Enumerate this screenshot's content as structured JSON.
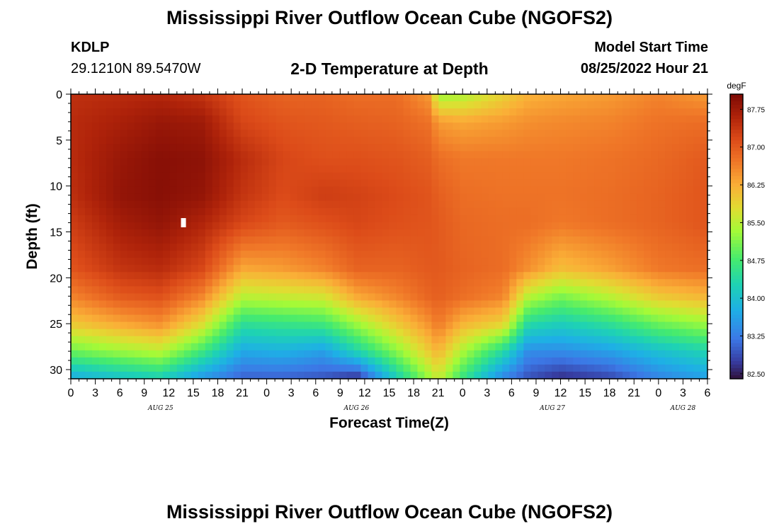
{
  "header": {
    "title": "Mississippi River Outflow Ocean Cube (NGOFS2)",
    "station": "KDLP",
    "coords": "29.1210N  89.5470W",
    "subtitle": "2-D Temperature at Depth",
    "model_start_label": "Model Start Time",
    "model_start_value": "08/25/2022 Hour 21",
    "bottom_title": "Mississippi River Outflow Ocean Cube (NGOFS2)"
  },
  "chart_data": {
    "type": "heatmap",
    "title": "2-D Temperature at Depth",
    "xlabel": "Forecast Time(Z)",
    "ylabel": "Depth (ft)",
    "x_tick_labels": [
      "0",
      "3",
      "6",
      "9",
      "12",
      "15",
      "18",
      "21",
      "0",
      "3",
      "6",
      "9",
      "12",
      "15",
      "18",
      "21",
      "0",
      "3",
      "6",
      "9",
      "12",
      "15",
      "18",
      "21",
      "0",
      "3",
      "6"
    ],
    "x_range_hours": [
      0,
      78
    ],
    "date_labels": [
      {
        "label": "AUG 25",
        "hour": 11
      },
      {
        "label": "AUG 26",
        "hour": 35
      },
      {
        "label": "AUG 27",
        "hour": 59
      },
      {
        "label": "AUG 28",
        "hour": 75
      }
    ],
    "y_ticks": [
      0,
      5,
      10,
      15,
      20,
      25,
      30
    ],
    "y_range_ft": [
      0,
      31
    ],
    "colorbar": {
      "unit": "degF",
      "min": 82.4,
      "max": 88.05,
      "ticks": [
        "87.75",
        "87.00",
        "86.25",
        "85.50",
        "84.75",
        "84.00",
        "83.25",
        "82.50"
      ]
    },
    "profile_columns": [
      {
        "hour": 0,
        "temps": [
          87.45,
          87.5,
          87.5,
          87.45,
          87.3,
          87.05,
          86.6,
          86.0,
          85.0,
          83.7
        ]
      },
      {
        "hour": 6,
        "temps": [
          87.5,
          87.65,
          87.8,
          87.85,
          87.7,
          87.4,
          87.0,
          86.3,
          85.3,
          84.0
        ]
      },
      {
        "hour": 11,
        "temps": [
          87.55,
          87.8,
          87.95,
          87.95,
          87.85,
          87.5,
          87.1,
          86.5,
          85.5,
          84.2
        ]
      },
      {
        "hour": 16,
        "temps": [
          87.4,
          87.75,
          87.9,
          87.85,
          87.6,
          87.2,
          86.6,
          85.8,
          84.7,
          83.5
        ]
      },
      {
        "hour": 21,
        "temps": [
          87.05,
          87.2,
          87.5,
          87.4,
          87.2,
          86.3,
          85.5,
          84.5,
          83.7,
          83.0
        ]
      },
      {
        "hour": 26,
        "temps": [
          86.9,
          87.05,
          87.2,
          87.15,
          87.0,
          86.4,
          85.6,
          84.6,
          83.8,
          83.0
        ]
      },
      {
        "hour": 31,
        "temps": [
          86.9,
          87.0,
          87.1,
          87.3,
          87.1,
          86.6,
          85.7,
          84.7,
          83.6,
          82.9
        ]
      },
      {
        "hour": 35,
        "temps": [
          86.8,
          86.95,
          87.1,
          87.25,
          87.2,
          86.9,
          86.3,
          85.3,
          84.3,
          82.6
        ]
      },
      {
        "hour": 40,
        "temps": [
          86.8,
          86.9,
          87.05,
          87.15,
          87.1,
          86.9,
          86.6,
          86.0,
          85.2,
          84.2
        ]
      },
      {
        "hour": 44,
        "temps": [
          86.4,
          86.75,
          86.95,
          87.05,
          87.05,
          87.0,
          86.9,
          86.5,
          86.0,
          85.3
        ]
      },
      {
        "hour": 45,
        "temps": [
          85.3,
          86.4,
          86.8,
          86.95,
          87.0,
          87.0,
          86.95,
          86.7,
          86.2,
          85.6
        ]
      },
      {
        "hour": 48,
        "temps": [
          85.4,
          86.3,
          86.7,
          86.8,
          86.85,
          86.9,
          86.8,
          86.2,
          85.4,
          84.6
        ]
      },
      {
        "hour": 53,
        "temps": [
          85.9,
          86.4,
          86.7,
          86.75,
          86.8,
          86.8,
          86.6,
          85.9,
          84.4,
          83.3
        ]
      },
      {
        "hour": 56,
        "temps": [
          86.2,
          86.5,
          86.7,
          86.75,
          86.8,
          86.5,
          85.5,
          84.4,
          83.4,
          82.9
        ]
      },
      {
        "hour": 60,
        "temps": [
          86.3,
          86.55,
          86.7,
          86.75,
          86.7,
          86.1,
          85.1,
          84.2,
          83.4,
          82.6
        ]
      },
      {
        "hour": 66,
        "temps": [
          86.4,
          86.6,
          86.75,
          86.8,
          86.8,
          86.35,
          85.5,
          84.5,
          83.6,
          82.8
        ]
      },
      {
        "hour": 72,
        "temps": [
          86.6,
          86.75,
          86.85,
          86.9,
          86.9,
          86.7,
          86.0,
          85.0,
          84.0,
          83.3
        ]
      },
      {
        "hour": 78,
        "temps": [
          86.4,
          86.8,
          87.0,
          87.05,
          87.05,
          86.8,
          86.2,
          85.3,
          84.3,
          83.6
        ]
      }
    ],
    "profile_depths_ft": [
      0,
      3,
      7,
      11,
      14,
      19,
      22,
      25,
      28,
      31
    ],
    "missing_cell": {
      "hour": 13.8,
      "depth_ft": 14
    }
  }
}
